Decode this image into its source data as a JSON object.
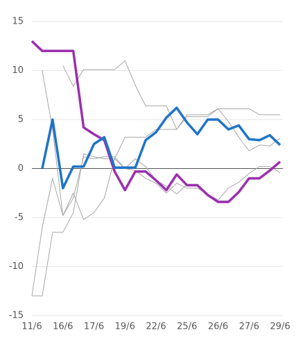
{
  "chart_data": {
    "type": "line",
    "categories": [
      "11/6",
      null,
      null,
      "16/6",
      null,
      null,
      "17/6",
      null,
      null,
      "19/6",
      null,
      null,
      "22/6",
      null,
      null,
      "25/6",
      null,
      null,
      "26/6",
      null,
      null,
      "27/6",
      null,
      null,
      "29/6"
    ],
    "ylim": [
      -15,
      15
    ],
    "yticks": [
      -15,
      -10,
      -5,
      0,
      5,
      10,
      15
    ],
    "grid": true,
    "series": [
      {
        "color": "#a6a6a6",
        "width": 1,
        "values": [
          null,
          10,
          4,
          -4.8,
          -2.5,
          -5.2,
          -4.5,
          -3,
          1,
          3.2,
          3.2,
          3.2,
          4,
          4,
          4,
          5.3,
          5.3,
          5.3,
          6.1,
          6.1,
          6.1,
          6.1,
          5.5,
          5.5,
          5.5
        ]
      },
      {
        "color": "#a6a6a6",
        "width": 1,
        "values": [
          -13,
          -13,
          -6.5,
          -6.5,
          -4.5,
          1.5,
          1.2,
          1,
          1,
          0,
          -0.2,
          -1,
          -1.5,
          -2.5,
          -1.5,
          -2,
          -2,
          -2.6,
          -3.2,
          -2,
          -1.4,
          -0.5,
          0.2,
          0.2,
          -0.4
        ]
      },
      {
        "color": "#a6a6a6",
        "width": 1,
        "values": [
          -13,
          -6,
          -1,
          -4.8,
          -3,
          1.2,
          1,
          1.2,
          1.2,
          0,
          1,
          0.2,
          -1.2,
          -1.8,
          -2.6,
          -1.6,
          -1.6,
          -2.6,
          -3.3,
          -3.3,
          -2.4,
          -1,
          -1,
          -0.3,
          0.6
        ]
      },
      {
        "color": "#a6a6a6",
        "width": 1,
        "values": [
          null,
          null,
          null,
          10.5,
          8.4,
          10.1,
          10.1,
          10.1,
          10.1,
          11,
          8.5,
          6.4,
          6.4,
          6.4,
          4,
          5.5,
          5.5,
          5.5,
          6.1,
          4.8,
          3.2,
          1.8,
          2.4,
          2.3,
          3.1
        ]
      },
      {
        "color": "#9b2fae",
        "width": 3.5,
        "values": [
          13,
          12,
          12,
          12,
          12,
          4.2,
          3.5,
          2.9,
          -0.3,
          -2.2,
          -0.3,
          -0.3,
          -1.2,
          -2.2,
          -0.6,
          -1.7,
          -1.7,
          -2.7,
          -3.4,
          -3.4,
          -2.4,
          -1,
          -1,
          -0.2,
          0.7
        ]
      },
      {
        "color": "#1f74c8",
        "width": 3.5,
        "values": [
          null,
          0,
          5,
          -2,
          0.2,
          0.2,
          2.5,
          3.2,
          0.1,
          0.1,
          0.1,
          2.9,
          3.7,
          5.2,
          6.2,
          4.7,
          3.5,
          5,
          5,
          4,
          4.4,
          3,
          2.9,
          3.4,
          2.4
        ]
      }
    ]
  }
}
